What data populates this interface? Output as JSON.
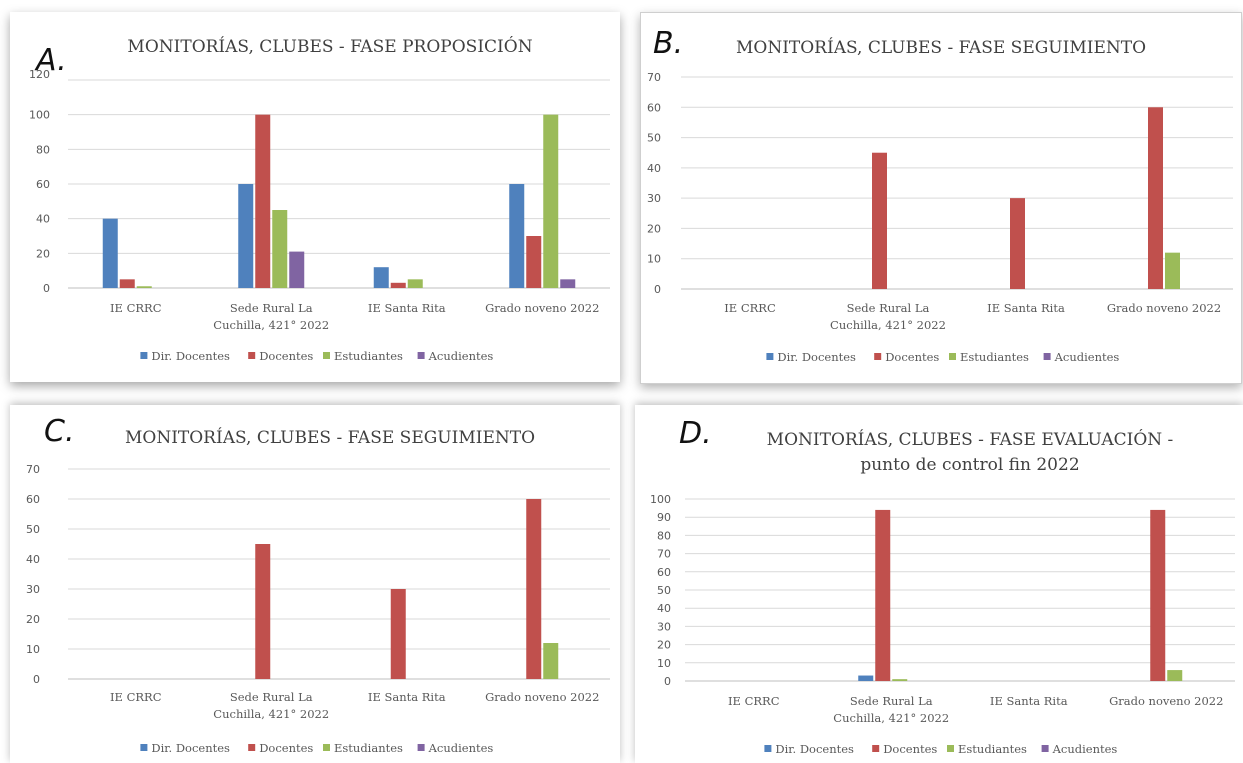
{
  "colors": {
    "Dir. Docentes": "#4f81bd",
    "Docentes": "#c0504d",
    "Estudiantes": "#9bbb59",
    "Acudientes": "#8064a2"
  },
  "chart_data": [
    {
      "panel": "A.",
      "type": "bar",
      "title": "MONITORÍAS, CLUBES - FASE PROPOSICIÓN",
      "categories": [
        "IE CRRC",
        "Sede Rural La Cuchilla, 421° 2022",
        "IE Santa Rita",
        "Grado noveno 2022"
      ],
      "series": [
        {
          "name": "Dir. Docentes",
          "values": [
            40,
            60,
            12,
            60
          ]
        },
        {
          "name": "Docentes",
          "values": [
            5,
            100,
            3,
            30
          ]
        },
        {
          "name": "Estudiantes",
          "values": [
            1,
            45,
            5,
            100
          ]
        },
        {
          "name": "Acudientes",
          "values": [
            0,
            21,
            0,
            5
          ]
        }
      ],
      "ylim": [
        0,
        120
      ],
      "yticks": [
        0,
        20,
        40,
        60,
        80,
        100,
        120
      ],
      "legend": "bottom",
      "grid": true
    },
    {
      "panel": "B.",
      "type": "bar",
      "title": "MONITORÍAS, CLUBES - FASE SEGUIMIENTO",
      "categories": [
        "IE CRRC",
        "Sede Rural La Cuchilla, 421° 2022",
        "IE Santa Rita",
        "Grado noveno 2022"
      ],
      "series": [
        {
          "name": "Dir. Docentes",
          "values": [
            0,
            0,
            0,
            0
          ]
        },
        {
          "name": "Docentes",
          "values": [
            0,
            45,
            30,
            60
          ]
        },
        {
          "name": "Estudiantes",
          "values": [
            0,
            0,
            0,
            12
          ]
        },
        {
          "name": "Acudientes",
          "values": [
            0,
            0,
            0,
            0
          ]
        }
      ],
      "ylim": [
        0,
        70
      ],
      "yticks": [
        0,
        10,
        20,
        30,
        40,
        50,
        60,
        70
      ],
      "legend": "bottom",
      "grid": true
    },
    {
      "panel": "C.",
      "type": "bar",
      "title": "MONITORÍAS, CLUBES - FASE SEGUIMIENTO",
      "categories": [
        "IE CRRC",
        "Sede Rural La Cuchilla, 421° 2022",
        "IE Santa Rita",
        "Grado noveno 2022"
      ],
      "series": [
        {
          "name": "Dir. Docentes",
          "values": [
            0,
            0,
            0,
            0
          ]
        },
        {
          "name": "Docentes",
          "values": [
            0,
            45,
            30,
            60
          ]
        },
        {
          "name": "Estudiantes",
          "values": [
            0,
            0,
            0,
            12
          ]
        },
        {
          "name": "Acudientes",
          "values": [
            0,
            0,
            0,
            0
          ]
        }
      ],
      "ylim": [
        0,
        70
      ],
      "yticks": [
        0,
        10,
        20,
        30,
        40,
        50,
        60,
        70
      ],
      "legend": "bottom",
      "grid": true
    },
    {
      "panel": "D.",
      "type": "bar",
      "title": "MONITORÍAS, CLUBES - FASE EVALUACIÓN - punto de control fin 2022",
      "title_lines": [
        "MONITORÍAS, CLUBES - FASE EVALUACIÓN -",
        "punto de control fin 2022"
      ],
      "categories": [
        "IE CRRC",
        "Sede Rural La Cuchilla, 421° 2022",
        "IE Santa Rita",
        "Grado noveno 2022"
      ],
      "series": [
        {
          "name": "Dir. Docentes",
          "values": [
            0,
            3,
            0,
            0
          ]
        },
        {
          "name": "Docentes",
          "values": [
            0,
            94,
            0,
            94
          ]
        },
        {
          "name": "Estudiantes",
          "values": [
            0,
            1,
            0,
            6
          ]
        },
        {
          "name": "Acudientes",
          "values": [
            0,
            0,
            0,
            0
          ]
        }
      ],
      "ylim": [
        0,
        100
      ],
      "yticks": [
        0,
        10,
        20,
        30,
        40,
        50,
        60,
        70,
        80,
        90,
        100
      ],
      "legend": "bottom",
      "grid": true
    }
  ]
}
